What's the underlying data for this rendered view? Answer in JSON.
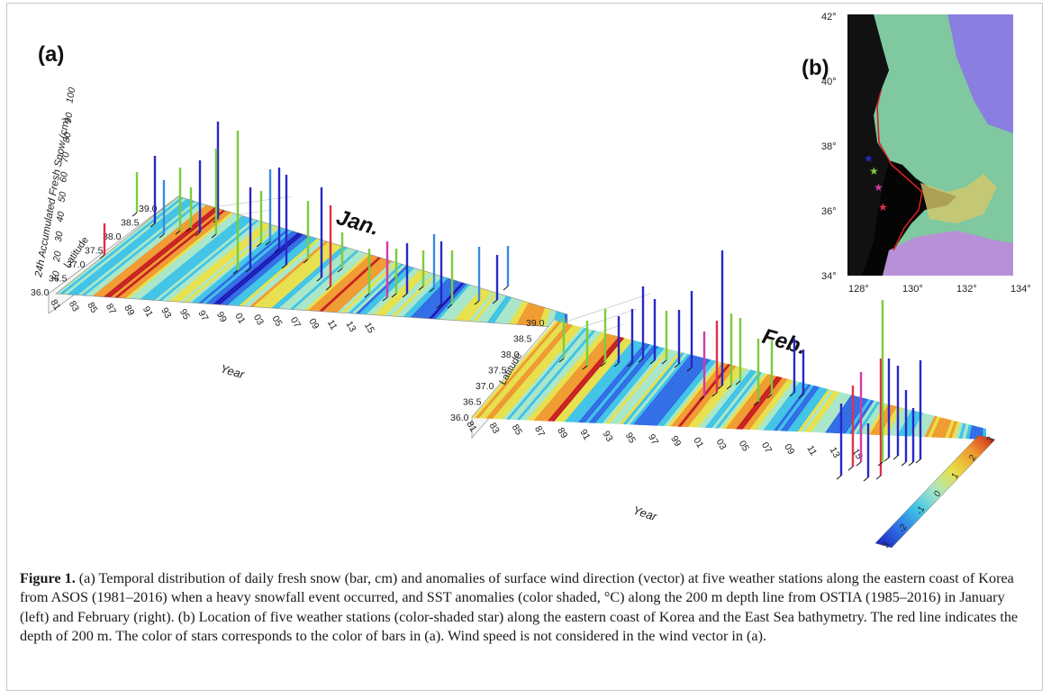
{
  "panel_a": {
    "label": "(a)",
    "y_axis_title": "24h Accumulated Fresh Snow (cm)",
    "y_axis_ticks": [
      "10",
      "20",
      "30",
      "40",
      "50",
      "60",
      "70",
      "80",
      "90",
      "100"
    ],
    "jan": {
      "month_label": "Jan.",
      "latitude_label": "Latitude",
      "latitude_ticks": [
        "36.0",
        "36.5",
        "37.0",
        "37.5",
        "38.0",
        "38.5",
        "39.0"
      ],
      "year_label": "Year",
      "year_ticks": [
        "81",
        "83",
        "85",
        "87",
        "89",
        "91",
        "93",
        "95",
        "97",
        "99",
        "01",
        "03",
        "05",
        "07",
        "09",
        "11",
        "13",
        "15"
      ]
    },
    "feb": {
      "month_label": "Feb.",
      "latitude_label": "Latitude",
      "latitude_ticks": [
        "36.0",
        "36.5",
        "37.0",
        "37.5",
        "38.0",
        "38.5",
        "39.0"
      ],
      "year_label": "Year",
      "year_ticks": [
        "81",
        "83",
        "85",
        "87",
        "89",
        "91",
        "93",
        "95",
        "97",
        "99",
        "01",
        "03",
        "05",
        "07",
        "09",
        "11",
        "13",
        "15"
      ]
    },
    "colorbar": {
      "ticks": [
        "-3",
        "-2",
        "-1",
        "0",
        "1",
        "2",
        "3"
      ],
      "colors": [
        "#1a1ab8",
        "#2e6be6",
        "#3ec3e6",
        "#a8e6c8",
        "#e6e04a",
        "#f09a2e",
        "#c81e1e"
      ]
    },
    "station_colors": [
      "#e0304c",
      "#d23aa8",
      "#2828c8",
      "#3a8ae0",
      "#7ccc3c"
    ]
  },
  "panel_b": {
    "label": "(b)",
    "lat_ticks": [
      "42°",
      "40°",
      "38°",
      "36°",
      "34°"
    ],
    "lon_ticks": [
      "128°",
      "130°",
      "132°",
      "134°"
    ]
  },
  "caption": {
    "label": "Figure 1.",
    "text": " (a) Temporal distribution of daily fresh snow (bar, cm) and anomalies of surface wind direction (vector) at five weather stations along the eastern coast of Korea from ASOS (1981–2016) when a heavy snowfall event occurred, and SST anomalies (color shaded, °C) along the 200 m depth line from OSTIA (1985–2016) in January (left) and February (right). (b) Location of five weather stations (color-shaded star) along the eastern coast of Korea and the East Sea bathymetry. The red line indicates the depth of 200 m. The color of stars corresponds to the color of bars in (a). Wind speed is not considered in the wind vector in (a)."
  }
}
